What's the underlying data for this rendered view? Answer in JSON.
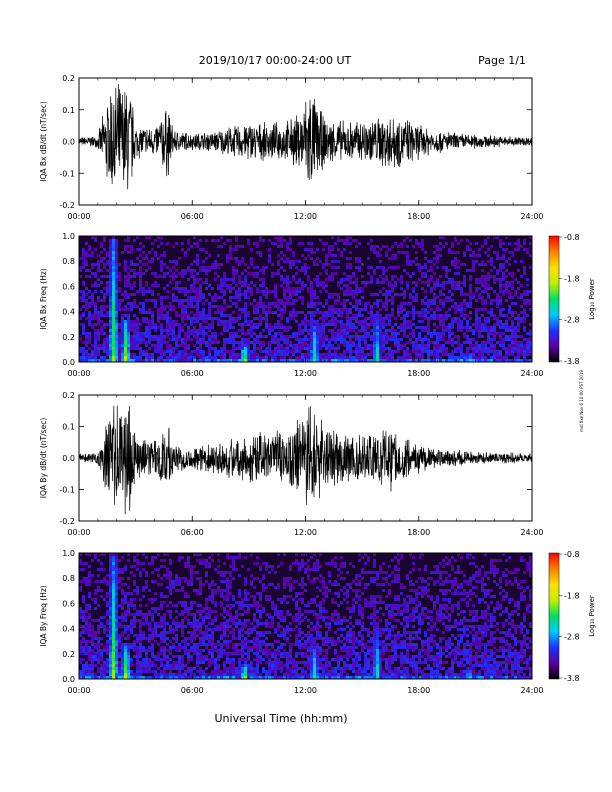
{
  "header": {
    "date_range": "2019/10/17  00:00-24:00 UT",
    "page": "Page 1/1"
  },
  "side_note": "mdl fixe Nov 6 10:00 PST 2019",
  "x_axis_label": "Universal Time (hh:mm)",
  "colorbar": {
    "title": "Log₁₀ Power",
    "ticks": [
      "-0.8",
      "-1.8",
      "-2.8",
      "-3.8"
    ],
    "range": [
      -3.8,
      -0.8
    ],
    "colors": [
      "#000000",
      "#5a00a0",
      "#2030ff",
      "#00c8ff",
      "#00e060",
      "#c0f000",
      "#ffe000",
      "#ff8000",
      "#ff0000"
    ]
  },
  "chart_data": [
    {
      "type": "line",
      "panel": "waveform",
      "ylabel": "IQA Bx dB/dt (nT/sec)",
      "xlim_hours": [
        0,
        24
      ],
      "ylim": [
        -0.2,
        0.2
      ],
      "x_ticks": [
        "00:00",
        "06:00",
        "12:00",
        "18:00",
        "24:00"
      ],
      "y_ticks": [
        "0.2",
        "0.1",
        "0.0",
        "-0.1",
        "-0.2"
      ],
      "x_hours": [
        0,
        1,
        1.7,
        2.2,
        2.7,
        3,
        4,
        4.7,
        5,
        6,
        7,
        8,
        9,
        10,
        11,
        11.7,
        12.2,
        13,
        14,
        15,
        16,
        16.5,
        17,
        18,
        19,
        20,
        21,
        22,
        23,
        24
      ],
      "envelope": [
        0.015,
        0.02,
        0.2,
        0.2,
        0.2,
        0.06,
        0.05,
        0.13,
        0.04,
        0.03,
        0.035,
        0.05,
        0.07,
        0.06,
        0.07,
        0.1,
        0.2,
        0.08,
        0.07,
        0.075,
        0.09,
        0.1,
        0.09,
        0.06,
        0.04,
        0.03,
        0.025,
        0.02,
        0.018,
        0.015
      ]
    },
    {
      "type": "heatmap",
      "panel": "spectrogram",
      "ylabel": "IQA Bx Freq (Hz)",
      "xlim_hours": [
        0,
        24
      ],
      "ylim": [
        0,
        1.0
      ],
      "x_ticks": [
        "00:00",
        "06:00",
        "12:00",
        "18:00",
        "24:00"
      ],
      "y_ticks": [
        "1.0",
        "0.8",
        "0.6",
        "0.4",
        "0.2",
        "0.0"
      ],
      "zlim": [
        -3.8,
        -0.8
      ],
      "features": [
        {
          "hour": 1.75,
          "freq_max": 1.0,
          "level": -2.2
        },
        {
          "hour": 2.4,
          "freq_max": 0.35,
          "level": -2.0
        },
        {
          "hour": 8.7,
          "freq_max": 0.15,
          "level": -2.0
        },
        {
          "hour": 12.4,
          "freq_max": 0.3,
          "level": -2.3
        },
        {
          "hour": 15.7,
          "freq_max": 0.4,
          "level": -2.6
        },
        {
          "hour": 20.6,
          "freq_max": 0.08,
          "level": -2.5
        }
      ]
    },
    {
      "type": "line",
      "panel": "waveform",
      "ylabel": "IQA By dB/dt (nT/sec)",
      "xlim_hours": [
        0,
        24
      ],
      "ylim": [
        -0.2,
        0.2
      ],
      "x_ticks": [
        "00:00",
        "06:00",
        "12:00",
        "18:00",
        "24:00"
      ],
      "y_ticks": [
        "0.2",
        "0.1",
        "0.0",
        "-0.1",
        "-0.2"
      ],
      "x_hours": [
        0,
        1,
        1.7,
        2.2,
        2.7,
        3,
        4,
        4.7,
        5,
        6,
        7,
        8,
        9,
        10,
        11,
        11.7,
        12.2,
        13,
        14,
        15,
        16,
        16.5,
        17,
        18,
        19,
        20,
        21,
        22,
        23,
        24
      ],
      "envelope": [
        0.015,
        0.02,
        0.2,
        0.2,
        0.2,
        0.08,
        0.06,
        0.14,
        0.05,
        0.04,
        0.05,
        0.07,
        0.09,
        0.08,
        0.1,
        0.14,
        0.2,
        0.12,
        0.1,
        0.09,
        0.1,
        0.12,
        0.09,
        0.05,
        0.035,
        0.03,
        0.02,
        0.02,
        0.018,
        0.015
      ]
    },
    {
      "type": "heatmap",
      "panel": "spectrogram",
      "ylabel": "IQA By Freq (Hz)",
      "xlim_hours": [
        0,
        24
      ],
      "ylim": [
        0,
        1.0
      ],
      "x_ticks": [
        "00:00",
        "06:00",
        "12:00",
        "18:00",
        "24:00"
      ],
      "y_ticks": [
        "1.0",
        "0.8",
        "0.6",
        "0.4",
        "0.2",
        "0.0"
      ],
      "zlim": [
        -3.8,
        -0.8
      ],
      "features": [
        {
          "hour": 1.75,
          "freq_max": 1.0,
          "level": -2.2
        },
        {
          "hour": 2.4,
          "freq_max": 0.3,
          "level": -2.0
        },
        {
          "hour": 8.7,
          "freq_max": 0.12,
          "level": -2.0
        },
        {
          "hour": 12.4,
          "freq_max": 0.25,
          "level": -2.4
        },
        {
          "hour": 15.7,
          "freq_max": 0.42,
          "level": -2.6
        },
        {
          "hour": 20.6,
          "freq_max": 0.08,
          "level": -2.5
        }
      ]
    }
  ]
}
